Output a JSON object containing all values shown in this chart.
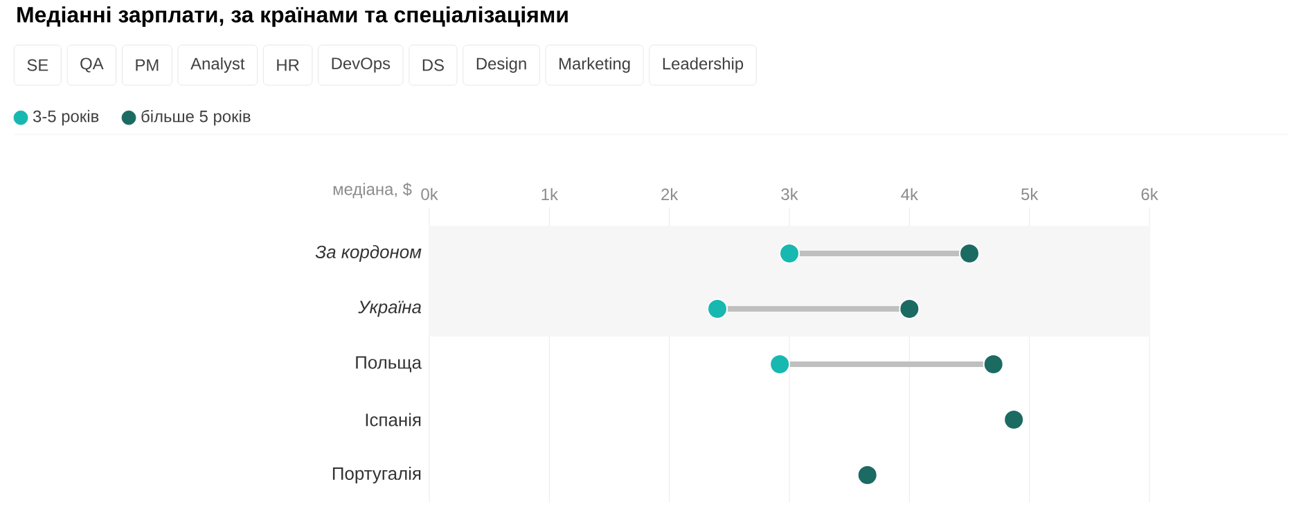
{
  "chart_data": {
    "type": "scatter",
    "orientation": "horizontal",
    "title": "Медіанні зарплати, за країнами та спеціалізаціями",
    "annotations": [
      "SE",
      "QA",
      "PM",
      "Analyst",
      "HR",
      "DevOps",
      "DS",
      "Design",
      "Marketing",
      "Leadership"
    ],
    "xlabel": "медіана, $",
    "categories": [
      "*За кордоном*",
      "*Україна*",
      "Польща",
      "Іспанія",
      "Португалія"
    ],
    "series": [
      {
        "name": "3-5 років",
        "color": "#17b8b0",
        "values": [
          3.0,
          2.4,
          2.92,
          null,
          null
        ]
      },
      {
        "name": "більше 5 років",
        "color": "#1c6b63",
        "values": [
          4.5,
          4.0,
          4.7,
          4.87,
          3.65
        ]
      }
    ],
    "xlim": [
      0,
      6
    ],
    "xticks": [
      {
        "value": 0,
        "label": "0k"
      },
      {
        "value": 1,
        "label": "1k"
      },
      {
        "value": 2,
        "label": "2k"
      },
      {
        "value": 3,
        "label": "3k"
      },
      {
        "value": 4,
        "label": "4k"
      },
      {
        "value": 5,
        "label": "5k"
      },
      {
        "value": 6,
        "label": "6k"
      }
    ],
    "bands": [
      {
        "axis": "y",
        "from": "*За кордоном*",
        "to": "*Україна*",
        "color": "#f6f6f6"
      }
    ],
    "grid": "x",
    "legend": "top left",
    "marker": "circle"
  }
}
